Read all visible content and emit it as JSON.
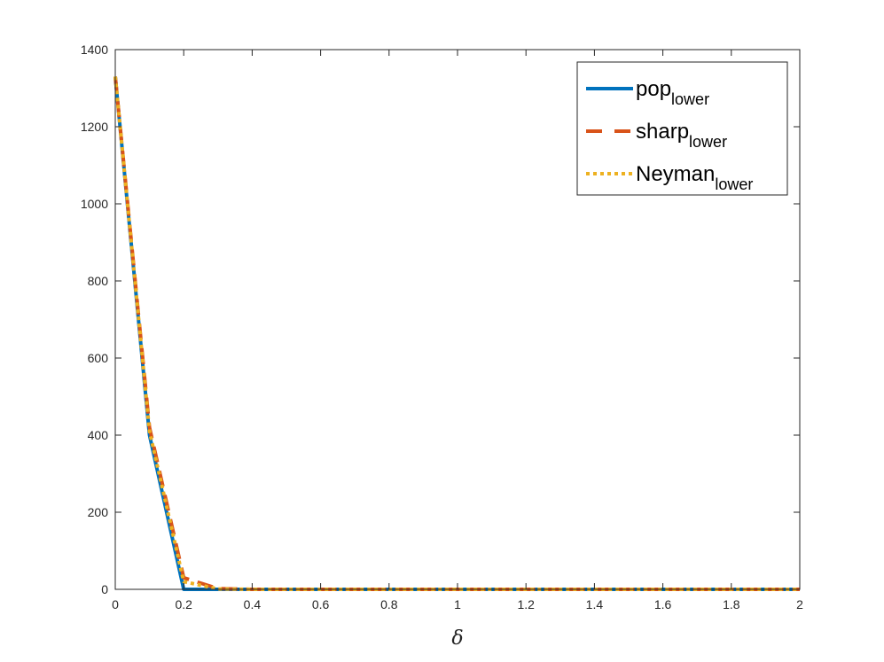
{
  "chart_data": {
    "type": "line",
    "title": "",
    "xlabel": "δ",
    "ylabel": "",
    "xlim": [
      0,
      2
    ],
    "ylim": [
      0,
      1400
    ],
    "xticks": [
      0,
      0.2,
      0.4,
      0.6,
      0.8,
      1,
      1.2,
      1.4,
      1.6,
      1.8,
      2
    ],
    "xtick_labels": [
      "0",
      "0.2",
      "0.4",
      "0.6",
      "0.8",
      "1",
      "1.2",
      "1.4",
      "1.6",
      "1.8",
      "2"
    ],
    "yticks": [
      0,
      200,
      400,
      600,
      800,
      1000,
      1200,
      1400
    ],
    "ytick_labels": [
      "0",
      "200",
      "400",
      "600",
      "800",
      "1000",
      "1200",
      "1400"
    ],
    "grid": false,
    "legend_position": "top-right",
    "series": [
      {
        "name": "pop",
        "name_subscript": "lower",
        "color": "#0072BD",
        "style": "solid",
        "x": [
          0,
          0.1,
          0.2,
          0.3,
          0.4,
          0.5,
          0.6,
          0.7,
          0.8,
          0.9,
          1.0,
          1.1,
          1.2,
          1.3,
          1.4,
          1.5,
          1.6,
          1.7,
          1.8,
          1.9,
          2.0
        ],
        "y": [
          1330,
          400,
          0,
          0,
          0,
          0,
          0,
          0,
          0,
          0,
          0,
          0,
          0,
          0,
          0,
          0,
          0,
          0,
          0,
          0,
          0
        ]
      },
      {
        "name": "sharp",
        "name_subscript": "lower",
        "color": "#D95319",
        "style": "dashed",
        "x": [
          0,
          0.1,
          0.2,
          0.3,
          0.4,
          0.5,
          0.6,
          0.7,
          0.8,
          0.9,
          1.0,
          1.1,
          1.2,
          1.3,
          1.4,
          1.5,
          1.6,
          1.7,
          1.8,
          1.9,
          2.0
        ],
        "y": [
          1330,
          420,
          30,
          2,
          0,
          0,
          0,
          0,
          0,
          0,
          0,
          0,
          0,
          0,
          0,
          0,
          0,
          0,
          0,
          0,
          0
        ]
      },
      {
        "name": "Neyman",
        "name_subscript": "lower",
        "color": "#EDB120",
        "style": "dotted",
        "x": [
          0,
          0.1,
          0.2,
          0.3,
          0.4,
          0.5,
          0.6,
          0.7,
          0.8,
          0.9,
          1.0,
          1.1,
          1.2,
          1.3,
          1.4,
          1.5,
          1.6,
          1.7,
          1.8,
          1.9,
          2.0
        ],
        "y": [
          1330,
          410,
          20,
          1,
          0,
          0,
          0,
          0,
          0,
          0,
          0,
          0,
          0,
          0,
          0,
          0,
          0,
          0,
          0,
          0,
          0
        ]
      }
    ]
  }
}
